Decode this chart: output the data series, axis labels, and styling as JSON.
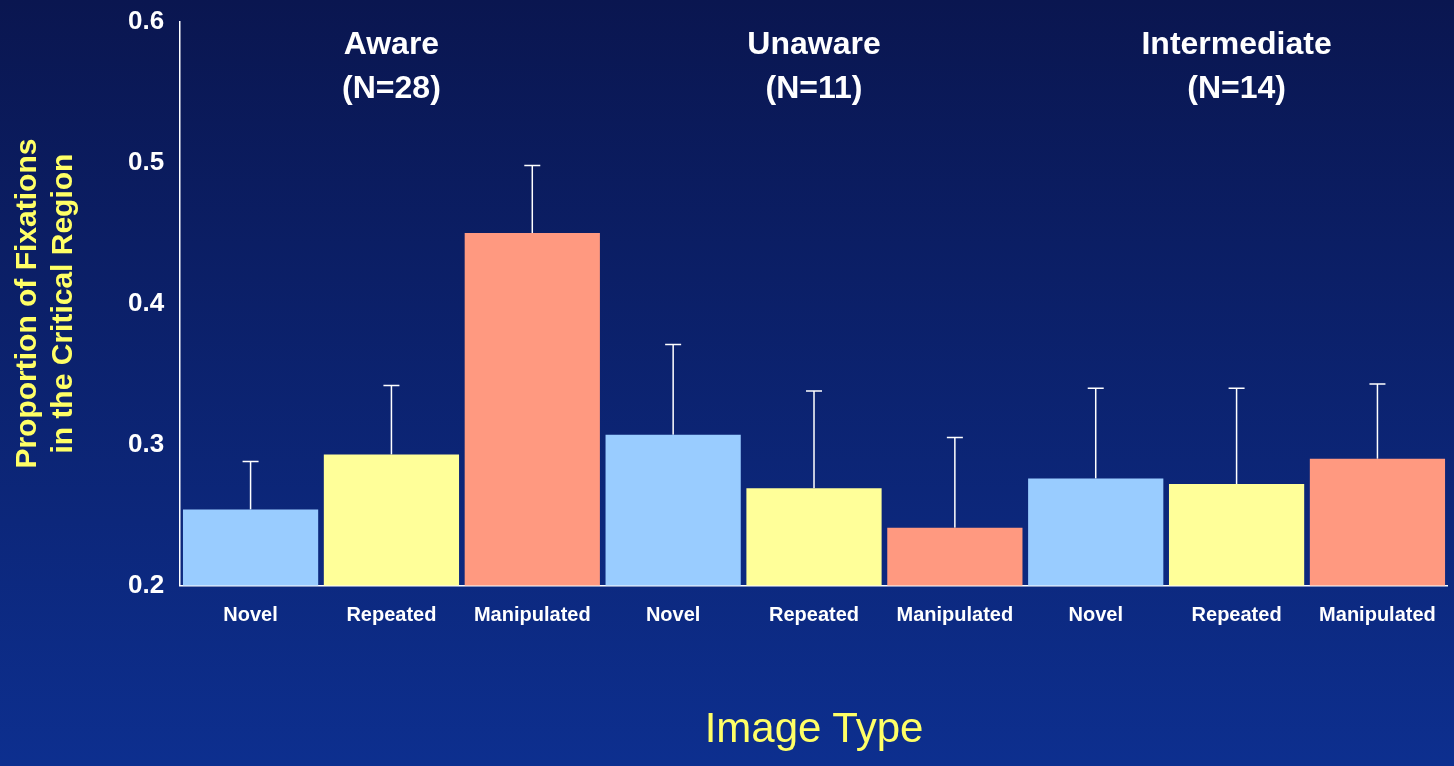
{
  "chart_data": {
    "type": "bar",
    "xlabel": "Image Type",
    "ylabel": "Proportion of Fixations in the Critical Region",
    "categories": [
      "Novel",
      "Repeated",
      "Manipulated",
      "Novel",
      "Repeated",
      "Manipulated",
      "Novel",
      "Repeated",
      "Manipulated"
    ],
    "values": [
      0.254,
      0.293,
      0.45,
      0.307,
      0.269,
      0.241,
      0.276,
      0.272,
      0.29
    ],
    "errors": [
      [
        0.254,
        0.288
      ],
      [
        0.293,
        0.342
      ],
      [
        0.45,
        0.498
      ],
      [
        0.307,
        0.371
      ],
      [
        0.269,
        0.338
      ],
      [
        0.241,
        0.305
      ],
      [
        0.276,
        0.34
      ],
      [
        0.272,
        0.34
      ],
      [
        0.29,
        0.343
      ]
    ],
    "colors": [
      "#99ccff",
      "#ffff99",
      "#ff9980",
      "#99ccff",
      "#ffff99",
      "#ff9980",
      "#99ccff",
      "#ffff99",
      "#ff9980"
    ],
    "ylim": [
      0.2,
      0.6
    ],
    "yticks": [
      0.2,
      0.3,
      0.4,
      0.5,
      0.6
    ],
    "grid": false,
    "legend": false,
    "annotations": [
      "Aware (N=28)",
      "Unaware (N=11)",
      "Intermediate (N=14)"
    ]
  }
}
